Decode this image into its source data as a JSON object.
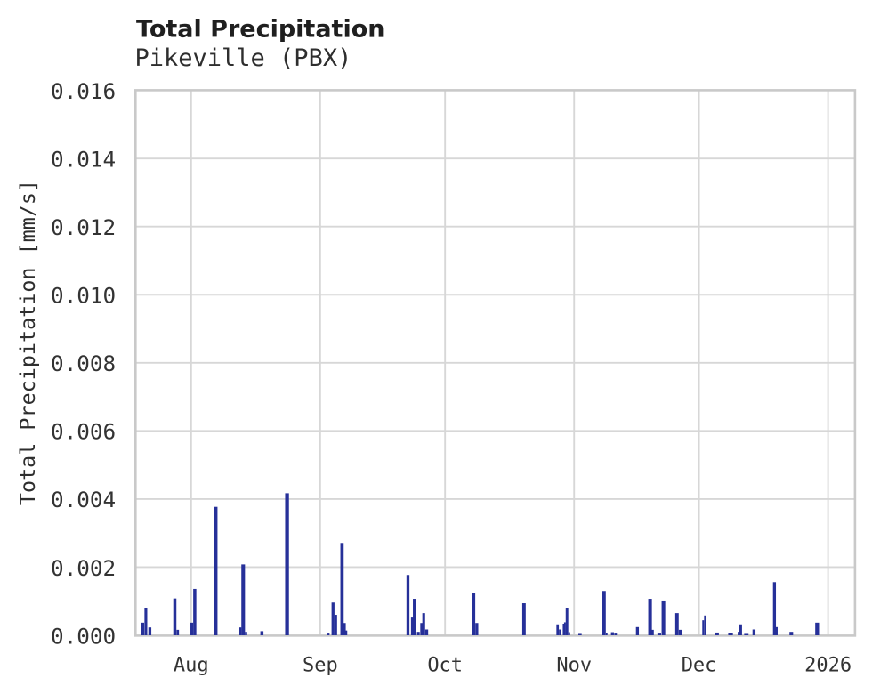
{
  "chart_data": {
    "type": "bar",
    "title": "Total Precipitation",
    "subtitle": "Pikeville (PBX)",
    "ylabel": "Total Precipitation [mm/s]",
    "xlabel": "",
    "y_min": 0.0,
    "y_max": 0.016,
    "y_tick_step": 0.002,
    "y_ticks": [
      "0.000",
      "0.002",
      "0.004",
      "0.006",
      "0.008",
      "0.010",
      "0.012",
      "0.014",
      "0.016"
    ],
    "x_start": "2025-07-18T15:23",
    "x_end": "2026-01-07T11:23",
    "x_ticks": [
      {
        "label": "Aug",
        "date": "2025-08-01T00:00"
      },
      {
        "label": "Sep",
        "date": "2025-09-01T00:00"
      },
      {
        "label": "Oct",
        "date": "2025-10-01T00:00"
      },
      {
        "label": "Nov",
        "date": "2025-11-01T00:00"
      },
      {
        "label": "Dec",
        "date": "2025-12-01T00:00"
      },
      {
        "label": "2026",
        "date": "2026-01-01T00:00"
      }
    ],
    "grid": true,
    "legend": "none",
    "series": [
      {
        "name": "Total Precipitation",
        "unit": "mm/s",
        "color": "#263099"
      }
    ],
    "bars": [
      {
        "t": "2025-07-20T09:00",
        "hours": 17,
        "v": 0.00037
      },
      {
        "t": "2025-07-21T03:00",
        "hours": 16,
        "v": 0.00081
      },
      {
        "t": "2025-07-22T02:00",
        "hours": 17,
        "v": 0.00023
      },
      {
        "t": "2025-07-28T02:00",
        "hours": 18,
        "v": 0.00108
      },
      {
        "t": "2025-07-28T19:00",
        "hours": 14,
        "v": 0.00016
      },
      {
        "t": "2025-08-01T04:00",
        "hours": 16,
        "v": 0.00037
      },
      {
        "t": "2025-08-01T21:00",
        "hours": 18,
        "v": 0.00136
      },
      {
        "t": "2025-08-06T23:00",
        "hours": 18,
        "v": 0.00377
      },
      {
        "t": "2025-08-12T20:00",
        "hours": 12,
        "v": 0.00023
      },
      {
        "t": "2025-08-13T12:00",
        "hours": 21,
        "v": 0.00208
      },
      {
        "t": "2025-08-14T05:00",
        "hours": 12,
        "v": 0.0001
      },
      {
        "t": "2025-08-18T00:00",
        "hours": 18,
        "v": 0.00012
      },
      {
        "t": "2025-08-24T01:00",
        "hours": 22,
        "v": 0.00417
      },
      {
        "t": "2025-09-03T00:00",
        "hours": 12,
        "v": 5e-05
      },
      {
        "t": "2025-09-04T02:00",
        "hours": 17,
        "v": 0.00096
      },
      {
        "t": "2025-09-04T18:00",
        "hours": 15,
        "v": 0.0006
      },
      {
        "t": "2025-09-06T06:00",
        "hours": 19,
        "v": 0.00271
      },
      {
        "t": "2025-09-06T19:00",
        "hours": 17,
        "v": 0.00036
      },
      {
        "t": "2025-09-07T07:00",
        "hours": 10,
        "v": 0.00014
      },
      {
        "t": "2025-09-22T02:00",
        "hours": 17,
        "v": 0.00177
      },
      {
        "t": "2025-09-23T02:00",
        "hours": 13,
        "v": 0.00052
      },
      {
        "t": "2025-09-23T15:00",
        "hours": 17,
        "v": 0.00107
      },
      {
        "t": "2025-09-24T14:00",
        "hours": 16,
        "v": 0.0001
      },
      {
        "t": "2025-09-25T08:00",
        "hours": 14,
        "v": 0.00036
      },
      {
        "t": "2025-09-25T21:00",
        "hours": 16,
        "v": 0.00065
      },
      {
        "t": "2025-09-26T14:00",
        "hours": 17,
        "v": 0.00017
      },
      {
        "t": "2025-10-07T21:00",
        "hours": 18,
        "v": 0.00123
      },
      {
        "t": "2025-10-08T15:00",
        "hours": 17,
        "v": 0.00036
      },
      {
        "t": "2025-10-19T23:00",
        "hours": 20,
        "v": 0.00094
      },
      {
        "t": "2025-10-28T01:00",
        "hours": 14,
        "v": 0.00032
      },
      {
        "t": "2025-10-28T14:00",
        "hours": 11,
        "v": 0.00017
      },
      {
        "t": "2025-10-29T11:00",
        "hours": 9,
        "v": 0.00034
      },
      {
        "t": "2025-10-29T19:00",
        "hours": 10,
        "v": 0.00038
      },
      {
        "t": "2025-10-30T07:00",
        "hours": 15,
        "v": 0.00081
      },
      {
        "t": "2025-10-30T20:00",
        "hours": 10,
        "v": 9e-05
      },
      {
        "t": "2025-11-02T10:00",
        "hours": 19,
        "v": 4e-05
      },
      {
        "t": "2025-11-08T03:00",
        "hours": 23,
        "v": 0.0013
      },
      {
        "t": "2025-11-08T20:00",
        "hours": 9,
        "v": 6e-05
      },
      {
        "t": "2025-11-10T05:00",
        "hours": 17,
        "v": 9e-05
      },
      {
        "t": "2025-11-10T23:00",
        "hours": 15,
        "v": 5e-05
      },
      {
        "t": "2025-11-16T05:00",
        "hours": 17,
        "v": 0.00024
      },
      {
        "t": "2025-11-19T06:00",
        "hours": 21,
        "v": 0.00107
      },
      {
        "t": "2025-11-19T21:00",
        "hours": 13,
        "v": 0.00016
      },
      {
        "t": "2025-11-21T11:00",
        "hours": 21,
        "v": 5e-05
      },
      {
        "t": "2025-11-22T11:00",
        "hours": 21,
        "v": 0.00102
      },
      {
        "t": "2025-11-25T17:00",
        "hours": 20,
        "v": 0.00065
      },
      {
        "t": "2025-11-26T12:00",
        "hours": 17,
        "v": 0.00016
      },
      {
        "t": "2025-12-02T00:00",
        "hours": 10,
        "v": 0.00044
      },
      {
        "t": "2025-12-02T11:00",
        "hours": 11,
        "v": 0.00058
      },
      {
        "t": "2025-12-05T07:00",
        "hours": 23,
        "v": 8e-05
      },
      {
        "t": "2025-12-08T14:00",
        "hours": 27,
        "v": 7e-05
      },
      {
        "t": "2025-12-10T10:00",
        "hours": 6,
        "v": 0.0001
      },
      {
        "t": "2025-12-10T22:00",
        "hours": 20,
        "v": 0.00032
      },
      {
        "t": "2025-12-12T09:00",
        "hours": 25,
        "v": 4e-05
      },
      {
        "t": "2025-12-14T05:00",
        "hours": 17,
        "v": 0.00017
      },
      {
        "t": "2025-12-19T03:00",
        "hours": 17,
        "v": 0.00156
      },
      {
        "t": "2025-12-19T16:00",
        "hours": 11,
        "v": 0.00024
      },
      {
        "t": "2025-12-23T04:00",
        "hours": 21,
        "v": 0.0001
      },
      {
        "t": "2025-12-29T09:00",
        "hours": 22,
        "v": 0.00037
      }
    ]
  },
  "colors": {
    "background": "#ffffff",
    "bar": "#263099",
    "plot_border": "#c9c9c9",
    "gridline": "#d7d7d7",
    "title_text": "#1f1f1f",
    "subtitle_text": "#2e2e2e",
    "tick_text": "#333333"
  }
}
